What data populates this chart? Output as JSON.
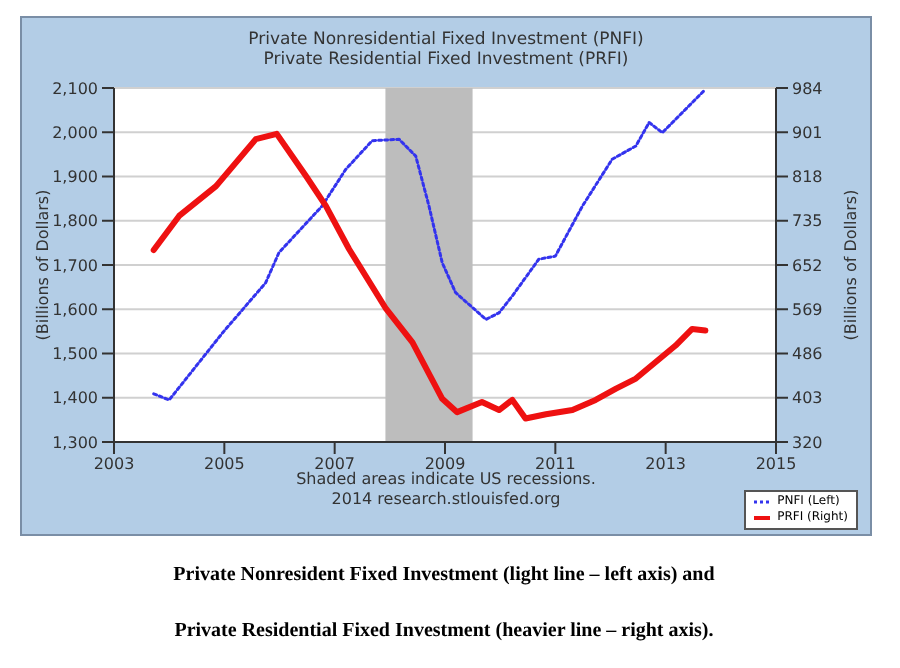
{
  "chart_data": {
    "type": "line",
    "title": "Private Nonresidential Fixed Investment (PNFI)",
    "subtitle": "Private Residential Fixed Investment (PRFI)",
    "ylabel": "(Billions of Dollars)",
    "y2label": "(Billions of Dollars)",
    "xlim": [
      2003,
      2015
    ],
    "xticks": [
      2003,
      2005,
      2007,
      2009,
      2011,
      2013,
      2015
    ],
    "ylim": [
      1300,
      2100
    ],
    "yticks": [
      {
        "value": 1300,
        "label": "1,300"
      },
      {
        "value": 1400,
        "label": "1,400"
      },
      {
        "value": 1500,
        "label": "1,500"
      },
      {
        "value": 1600,
        "label": "1,600"
      },
      {
        "value": 1700,
        "label": "1,700"
      },
      {
        "value": 1800,
        "label": "1,800"
      },
      {
        "value": 1900,
        "label": "1,900"
      },
      {
        "value": 2000,
        "label": "2,000"
      },
      {
        "value": 2100,
        "label": "2,100"
      }
    ],
    "y2lim": [
      320,
      984
    ],
    "y2ticks": [
      320,
      403,
      486,
      569,
      652,
      735,
      818,
      901,
      984
    ],
    "series": [
      {
        "name": "PNFI (Left)",
        "color": "#3333ee",
        "line_style": "dotted",
        "x": [
          2003.72,
          2004.0,
          2004.97,
          2005.75,
          2005.99,
          2006.77,
          2007.2,
          2007.68,
          2008.17,
          2008.47,
          2008.71,
          2008.95,
          2009.19,
          2009.74,
          2009.98,
          2010.22,
          2010.7,
          2011.0,
          2011.49,
          2012.03,
          2012.46,
          2012.7,
          2012.94,
          2013.72
        ],
        "values": [
          1409,
          1395,
          1547,
          1660,
          1728,
          1833,
          1916,
          1981,
          1984,
          1946,
          1833,
          1705,
          1638,
          1577,
          1592,
          1630,
          1713,
          1720,
          1833,
          1939,
          1969,
          2022,
          1999,
          2097
        ]
      },
      {
        "name": "PRFI (Right)",
        "color": "#ee1111",
        "line_style": "solid",
        "axis": "y2",
        "x": [
          2003.72,
          2004.18,
          2004.85,
          2005.57,
          2005.95,
          2006.48,
          2006.84,
          2007.26,
          2007.93,
          2008.41,
          2008.95,
          2009.22,
          2009.67,
          2009.98,
          2010.22,
          2010.46,
          2010.83,
          2011.31,
          2011.73,
          2012.1,
          2012.46,
          2013.18,
          2013.48,
          2013.72
        ],
        "values": [
          680,
          744,
          800,
          888,
          898,
          819,
          763,
          682,
          570,
          507,
          401,
          376,
          395,
          380,
          399,
          364,
          372,
          380,
          399,
          420,
          439,
          501,
          532,
          529
        ]
      }
    ],
    "bands": [
      {
        "axis": "x",
        "from": 2007.92,
        "to": 2009.5,
        "color": "#bdbdbd"
      }
    ],
    "grid": "y",
    "legend": "bottom right",
    "marker": "none",
    "annotations": [
      "Shaded areas indicate US recessions.",
      "2014 research.stlouisfed.org",
      "Private Nonresident Fixed Investment (light line – left axis) and",
      "Private Residential Fixed Investment (heavier line – right axis)."
    ]
  }
}
